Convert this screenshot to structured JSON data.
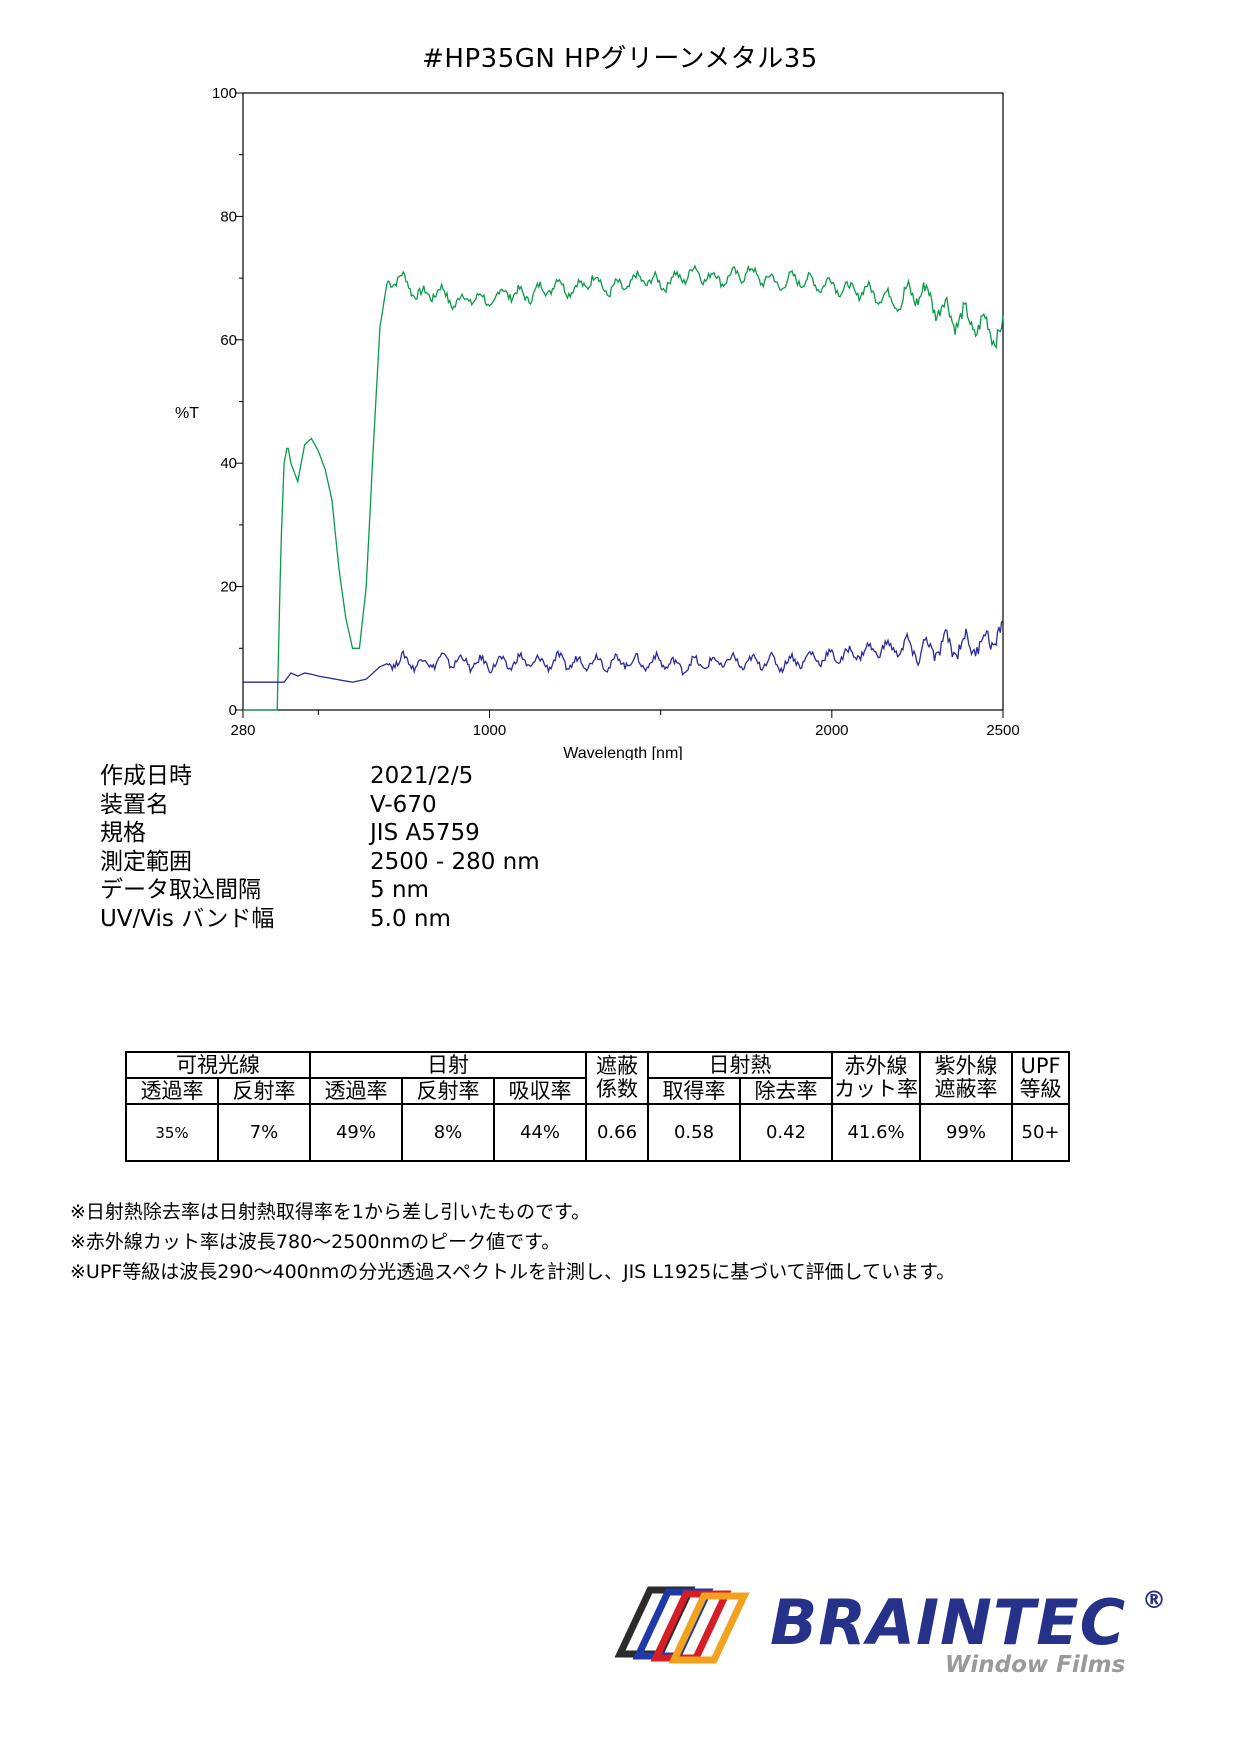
{
  "title": "#HP35GN  HPグリーンメタル35",
  "chart_data": {
    "type": "line",
    "title": "",
    "xlabel": "Wavelength [nm]",
    "ylabel": "%T",
    "xlim": [
      280,
      2500
    ],
    "ylim": [
      0,
      100
    ],
    "x_ticks": [
      280,
      1000,
      2000,
      2500
    ],
    "y_ticks": [
      0,
      20,
      40,
      60,
      80,
      100
    ],
    "grid": false,
    "series": [
      {
        "color": "#0a9a4a",
        "x": [
          280,
          380,
          390,
          400,
          410,
          420,
          440,
          460,
          480,
          500,
          520,
          540,
          560,
          580,
          600,
          620,
          640,
          660,
          680,
          700,
          720,
          740,
          760,
          780,
          800,
          850,
          900,
          950,
          1000,
          1050,
          1100,
          1150,
          1200,
          1250,
          1300,
          1350,
          1400,
          1450,
          1500,
          1550,
          1600,
          1650,
          1700,
          1750,
          1800,
          1850,
          1900,
          1950,
          2000,
          2050,
          2100,
          2150,
          2200,
          2250,
          2300,
          2350,
          2400,
          2450,
          2500
        ],
        "y": [
          0,
          0,
          25,
          40,
          43,
          40,
          37,
          43,
          44,
          42,
          39,
          34,
          23,
          15,
          10,
          10,
          20,
          42,
          62,
          69,
          70,
          70,
          69,
          68,
          67,
          68,
          66,
          67,
          66,
          68,
          67,
          68,
          69,
          68,
          70,
          68,
          69,
          70,
          69,
          70,
          71,
          70,
          70,
          71,
          70,
          69,
          70,
          69,
          69,
          68,
          68,
          67,
          66,
          68,
          66,
          64,
          63,
          62,
          61
        ]
      },
      {
        "color": "#2a2a9a",
        "x": [
          280,
          400,
          420,
          440,
          460,
          480,
          500,
          550,
          600,
          640,
          680,
          720,
          750,
          800,
          850,
          900,
          950,
          1000,
          1050,
          1100,
          1150,
          1200,
          1250,
          1300,
          1350,
          1400,
          1450,
          1500,
          1550,
          1600,
          1650,
          1700,
          1750,
          1800,
          1850,
          1900,
          1950,
          2000,
          2050,
          2100,
          2150,
          2200,
          2250,
          2300,
          2350,
          2400,
          2450,
          2500
        ],
        "y": [
          4.5,
          4.5,
          6,
          5.5,
          6,
          5.8,
          5.5,
          5,
          4.5,
          5,
          7,
          8,
          8,
          7.5,
          8,
          8,
          7.5,
          7.5,
          7.5,
          8,
          7.5,
          8,
          7.5,
          8,
          7.5,
          8,
          7.5,
          8,
          7,
          7.5,
          7.5,
          8,
          7.5,
          8,
          7.5,
          8,
          8.5,
          8.5,
          9,
          9.5,
          10,
          10,
          9.5,
          10,
          10.5,
          10.5,
          11,
          13
        ]
      }
    ]
  },
  "info": [
    {
      "label": "作成日時",
      "value": "2021/2/5"
    },
    {
      "label": "装置名",
      "value": "V-670"
    },
    {
      "label": "規格",
      "value": "JIS A5759"
    },
    {
      "label": "測定範囲",
      "value": "2500 - 280 nm"
    },
    {
      "label": "データ取込間隔",
      "value": "5 nm"
    },
    {
      "label": "UV/Vis バンド幅",
      "value": "5.0 nm"
    }
  ],
  "table": {
    "g_visible": "可視光線",
    "g_solar": "日射",
    "shading_1": "遮蔽",
    "shading_2": "係数",
    "g_heat": "日射熱",
    "ir_1": "赤外線",
    "ir_2": "カット率",
    "uv_1": "紫外線",
    "uv_2": "遮蔽率",
    "upf_1": "UPF",
    "upf_2": "等級",
    "sub_vis_trans": "透過率",
    "sub_vis_refl": "反射率",
    "sub_sol_trans": "透過率",
    "sub_sol_refl": "反射率",
    "sub_sol_abs": "吸収率",
    "sub_heat_gain": "取得率",
    "sub_heat_reject": "除去率",
    "values": [
      "35%",
      "7%",
      "49%",
      "8%",
      "44%",
      "0.66",
      "0.58",
      "0.42",
      "41.6%",
      "99%",
      "50+"
    ]
  },
  "notes": [
    "※日射熱除去率は日射熱取得率を1から差し引いたものです。",
    "※赤外線カット率は波長780〜2500nmのピーク値です。",
    "※UPF等級は波長290〜400nmの分光透過スペクトルを計測し、JIS L1925に基づいて評価しています。"
  ],
  "logo": {
    "brand": "BRAINTEC",
    "registered": "®",
    "sub": "Window Films",
    "stripe_colors": [
      "#2b2b2b",
      "#1f3aa8",
      "#d41f26",
      "#f2a21d"
    ]
  }
}
